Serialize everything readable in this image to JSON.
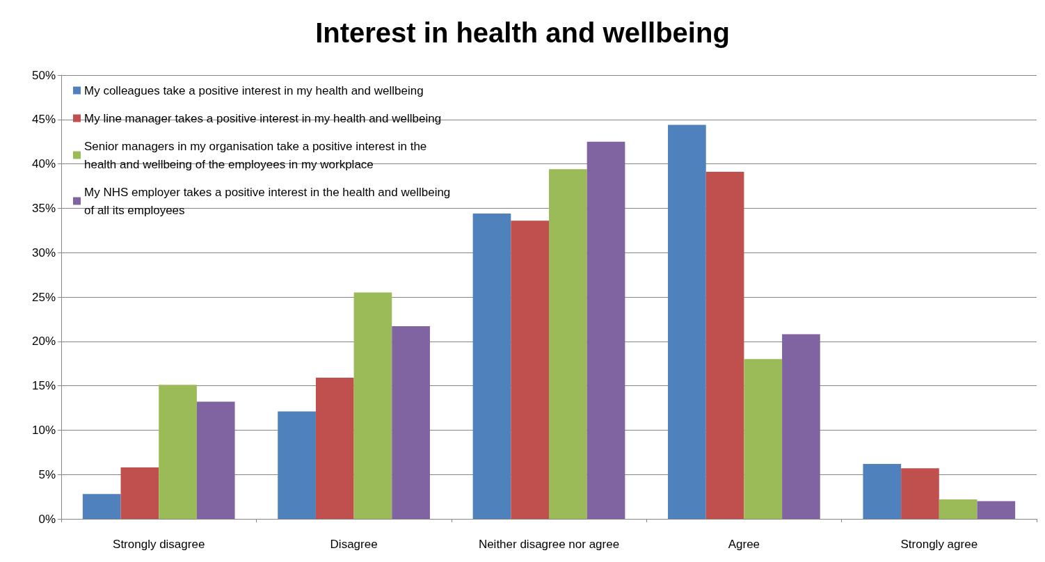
{
  "chart_data": {
    "type": "bar",
    "title": "Interest in health and wellbeing",
    "categories": [
      "Strongly disagree",
      "Disagree",
      "Neither disagree nor agree",
      "Agree",
      "Strongly agree"
    ],
    "series": [
      {
        "name": "My colleagues take a positive interest in my health and wellbeing",
        "color": "#4f81bd",
        "values": [
          2.8,
          12.1,
          34.4,
          44.4,
          6.2
        ]
      },
      {
        "name": "My line manager takes a positive interest in my health and wellbeing",
        "color": "#c0504d",
        "values": [
          5.8,
          15.9,
          33.6,
          39.1,
          5.7
        ]
      },
      {
        "name": "Senior managers in my organisation take a positive interest in the health and wellbeing of the employees in my workplace",
        "color": "#9bbb59",
        "values": [
          15.1,
          25.5,
          39.4,
          18.0,
          2.2
        ]
      },
      {
        "name": "My NHS employer takes a positive interest in the health and wellbeing of all its employees",
        "color": "#8064a2",
        "values": [
          13.2,
          21.7,
          42.5,
          20.8,
          2.0
        ]
      }
    ],
    "ylim": [
      0,
      50
    ],
    "yticks": [
      {
        "value": 0,
        "label": "0%"
      },
      {
        "value": 5,
        "label": "5%"
      },
      {
        "value": 10,
        "label": "10%"
      },
      {
        "value": 15,
        "label": "15%"
      },
      {
        "value": 20,
        "label": "20%"
      },
      {
        "value": 25,
        "label": "25%"
      },
      {
        "value": 30,
        "label": "30%"
      },
      {
        "value": 35,
        "label": "35%"
      },
      {
        "value": 40,
        "label": "40%"
      },
      {
        "value": 45,
        "label": "45%"
      },
      {
        "value": 50,
        "label": "50%"
      }
    ],
    "grid": "y",
    "legend": "top left"
  }
}
